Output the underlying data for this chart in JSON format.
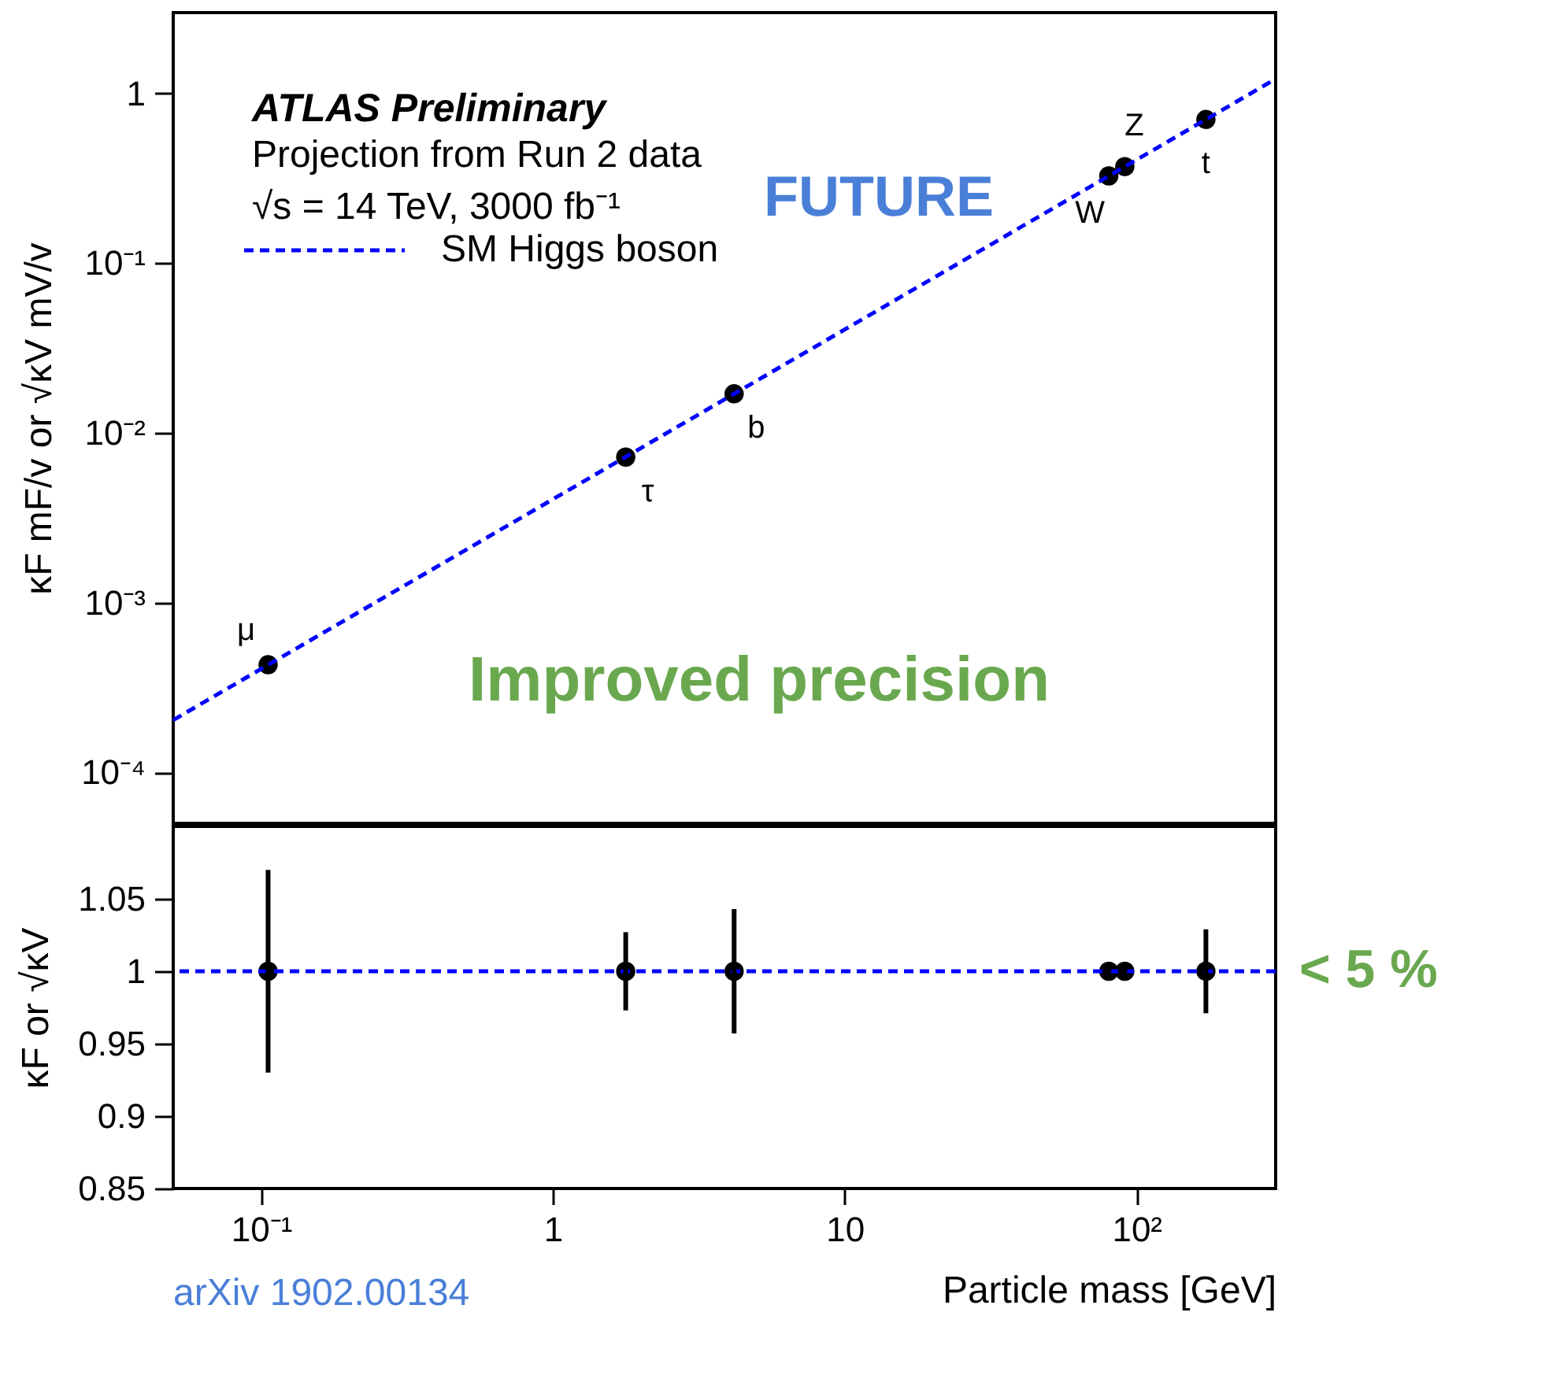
{
  "chart_data": [
    {
      "type": "scatter",
      "x": [
        0.1057,
        1.777,
        4.18,
        80.4,
        91.2,
        173
      ],
      "series": [
        {
          "type": "scatter",
          "color": "#000000",
          "values": [
            0.00043,
            0.0072,
            0.017,
            0.327,
            0.371,
            0.703
          ]
        },
        {
          "name": "SM Higgs boson",
          "type": "line",
          "x": [
            0.05,
            300
          ],
          "values": [
            0.000203,
            1.22
          ],
          "color": "#0000ff",
          "line_style": "dashed",
          "marker": "none"
        }
      ],
      "log": "xy",
      "xlim": [
        0.05,
        300
      ],
      "ylim": [
        5e-05,
        3
      ],
      "yticks": [
        {
          "value": 0.0001,
          "label": "10⁻⁴"
        },
        {
          "value": 0.001,
          "label": "10⁻³"
        },
        {
          "value": 0.01,
          "label": "10⁻²"
        },
        {
          "value": 0.1,
          "label": "10⁻¹"
        },
        1
      ],
      "tick_labels": "y",
      "ylabel": "κF mF/v or √κV mV/v",
      "legend": "top left",
      "marker": "circle",
      "grid": false,
      "annotations": [
        "ATLAS Preliminary",
        "Projection from Run 2 data",
        "√s = 14 TeV, 3000 fb⁻¹",
        "FUTURE",
        "Improved precision",
        {
          "text": "μ",
          "x": 0.1057,
          "y": 0.00043
        },
        {
          "text": "τ",
          "x": 1.777,
          "y": 0.0072
        },
        {
          "text": "b",
          "x": 4.18,
          "y": 0.017
        },
        {
          "text": "W",
          "x": 80.4,
          "y": 0.327
        },
        {
          "text": "Z",
          "x": 91.2,
          "y": 0.371
        },
        {
          "text": "t",
          "x": 173,
          "y": 0.703
        }
      ]
    },
    {
      "type": "scatter",
      "x": [
        0.1057,
        1.777,
        4.18,
        80.4,
        91.2,
        173
      ],
      "values": [
        1,
        1,
        1,
        1,
        1,
        1
      ],
      "errors": [
        0.07,
        0.027,
        0.043,
        0.004,
        0.004,
        0.029
      ],
      "color": "#000000",
      "marker": "circle",
      "ref_lines": [
        {
          "axis": "y",
          "value": 1,
          "color": "#0000ff",
          "line_style": "dashed"
        }
      ],
      "log": "x",
      "xlim": [
        0.05,
        300
      ],
      "ylim": [
        0.85,
        1.1
      ],
      "xticks": [
        {
          "value": 0.1,
          "label": "10⁻¹"
        },
        1,
        10,
        {
          "value": 100,
          "label": "10²"
        }
      ],
      "yticks": [
        0.85,
        0.9,
        0.95,
        1,
        1.05
      ],
      "xlabel": "Particle mass [GeV]",
      "ylabel": "κF or √κV",
      "grid": false,
      "annotations": [
        "< 5 %",
        "arXiv 1902.00134"
      ]
    }
  ]
}
